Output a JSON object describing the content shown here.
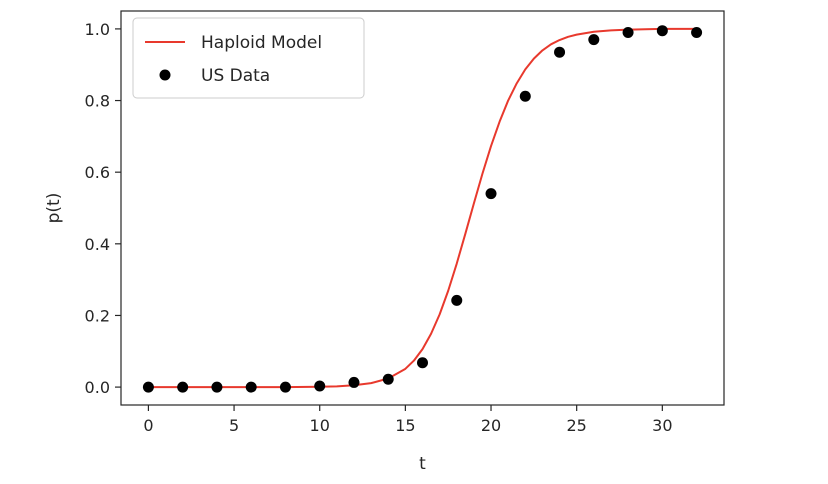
{
  "chart_data": {
    "type": "line",
    "xlabel": "t",
    "ylabel": "p(t)",
    "xlim": [
      -1.6,
      33.6
    ],
    "ylim": [
      -0.05,
      1.05
    ],
    "xticks": [
      0,
      5,
      10,
      15,
      20,
      25,
      30
    ],
    "yticks": [
      0.0,
      0.2,
      0.4,
      0.6,
      0.8,
      1.0
    ],
    "xtick_labels": [
      "0",
      "5",
      "10",
      "15",
      "20",
      "25",
      "30"
    ],
    "ytick_labels": [
      "0.0",
      "0.2",
      "0.4",
      "0.6",
      "0.8",
      "1.0"
    ],
    "grid": false,
    "legend_position": "top-left",
    "series": [
      {
        "name": "Haploid Model",
        "type": "line",
        "color": "#e8392d",
        "x": [
          0,
          2,
          4,
          6,
          8,
          10,
          11,
          12,
          13,
          14,
          15,
          15.5,
          16,
          16.5,
          17,
          17.5,
          18,
          18.5,
          19,
          19.5,
          20,
          20.5,
          21,
          21.5,
          22,
          22.5,
          23,
          23.5,
          24,
          24.5,
          25,
          26,
          27,
          28,
          29,
          30,
          31,
          32
        ],
        "y": [
          0.0,
          0.0,
          0.0,
          0.0,
          0.0,
          0.001,
          0.002,
          0.005,
          0.011,
          0.024,
          0.051,
          0.074,
          0.106,
          0.149,
          0.203,
          0.269,
          0.345,
          0.428,
          0.513,
          0.596,
          0.673,
          0.741,
          0.8,
          0.848,
          0.887,
          0.917,
          0.94,
          0.957,
          0.969,
          0.978,
          0.984,
          0.992,
          0.996,
          0.998,
          0.999,
          1.0,
          1.0,
          1.0
        ]
      },
      {
        "name": "US Data",
        "type": "scatter",
        "color": "#000000",
        "x": [
          0,
          2,
          4,
          6,
          8,
          10,
          12,
          14,
          16,
          18,
          20,
          22,
          24,
          26,
          28,
          30,
          32
        ],
        "y": [
          0.0,
          0.0,
          0.0,
          0.0,
          0.0,
          0.003,
          0.013,
          0.022,
          0.068,
          0.242,
          0.54,
          0.812,
          0.935,
          0.97,
          0.99,
          0.995,
          0.99
        ]
      }
    ]
  }
}
